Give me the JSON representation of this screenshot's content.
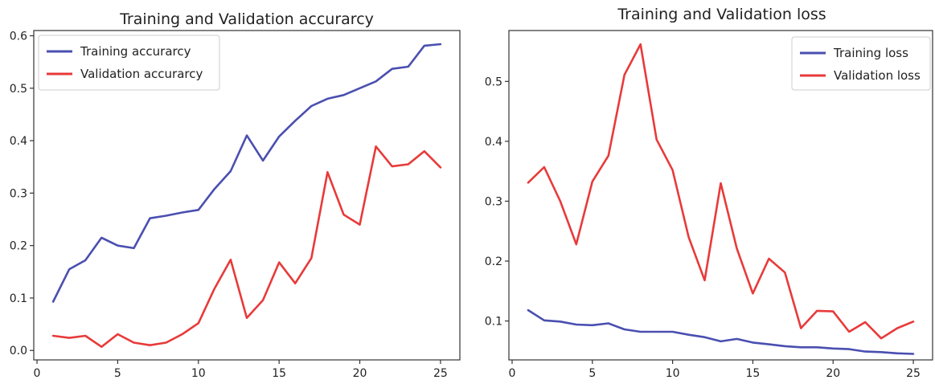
{
  "chart_data": [
    {
      "type": "line",
      "title": "Training and Validation accurarcy",
      "xlabel": "",
      "ylabel": "",
      "xlim": [
        -0.2,
        26.2
      ],
      "ylim": [
        -0.018,
        0.61
      ],
      "xticks": [
        0,
        5,
        10,
        15,
        20,
        25
      ],
      "yticks": [
        0.0,
        0.1,
        0.2,
        0.3,
        0.4,
        0.5,
        0.6
      ],
      "ytick_labels": [
        "0.0",
        "0.1",
        "0.2",
        "0.3",
        "0.4",
        "0.5",
        "0.6"
      ],
      "grid": false,
      "legend_position": "top-left",
      "x": [
        1,
        2,
        3,
        4,
        5,
        6,
        7,
        8,
        9,
        10,
        11,
        12,
        13,
        14,
        15,
        16,
        17,
        18,
        19,
        20,
        21,
        22,
        23,
        24,
        25
      ],
      "series": [
        {
          "name": "Training accurarcy",
          "color": "#4a4fb0",
          "values": [
            0.093,
            0.155,
            0.172,
            0.215,
            0.2,
            0.195,
            0.252,
            0.257,
            0.263,
            0.268,
            0.308,
            0.342,
            0.41,
            0.362,
            0.408,
            0.438,
            0.466,
            0.48,
            0.487,
            0.5,
            0.513,
            0.537,
            0.541,
            0.581,
            0.584
          ]
        },
        {
          "name": "Validation accurarcy",
          "color": "#e83a3a",
          "values": [
            0.028,
            0.024,
            0.028,
            0.007,
            0.031,
            0.015,
            0.01,
            0.015,
            0.031,
            0.052,
            0.118,
            0.173,
            0.062,
            0.096,
            0.168,
            0.128,
            0.176,
            0.34,
            0.259,
            0.24,
            0.389,
            0.351,
            0.355,
            0.38,
            0.349
          ]
        }
      ]
    },
    {
      "type": "line",
      "title": "Training and Validation loss",
      "xlabel": "",
      "ylabel": "",
      "xlim": [
        -0.2,
        26.2
      ],
      "ylim": [
        0.035,
        0.585
      ],
      "xticks": [
        0,
        5,
        10,
        15,
        20,
        25
      ],
      "yticks": [
        0.1,
        0.2,
        0.3,
        0.4,
        0.5
      ],
      "ytick_labels": [
        "0.1",
        "0.2",
        "0.3",
        "0.4",
        "0.5"
      ],
      "grid": false,
      "legend_position": "top-right",
      "x": [
        1,
        2,
        3,
        4,
        5,
        6,
        7,
        8,
        9,
        10,
        11,
        12,
        13,
        14,
        15,
        16,
        17,
        18,
        19,
        20,
        21,
        22,
        23,
        24,
        25
      ],
      "series": [
        {
          "name": "Training loss",
          "color": "#4a4fb0",
          "values": [
            0.118,
            0.101,
            0.099,
            0.094,
            0.093,
            0.096,
            0.086,
            0.082,
            0.082,
            0.082,
            0.077,
            0.073,
            0.066,
            0.07,
            0.064,
            0.061,
            0.058,
            0.056,
            0.056,
            0.054,
            0.053,
            0.049,
            0.048,
            0.046,
            0.045
          ]
        },
        {
          "name": "Validation loss",
          "color": "#e83a3a",
          "values": [
            0.331,
            0.357,
            0.3,
            0.228,
            0.333,
            0.376,
            0.511,
            0.562,
            0.403,
            0.352,
            0.24,
            0.168,
            0.33,
            0.221,
            0.146,
            0.204,
            0.181,
            0.088,
            0.117,
            0.116,
            0.082,
            0.098,
            0.071,
            0.088,
            0.099
          ]
        }
      ]
    }
  ]
}
